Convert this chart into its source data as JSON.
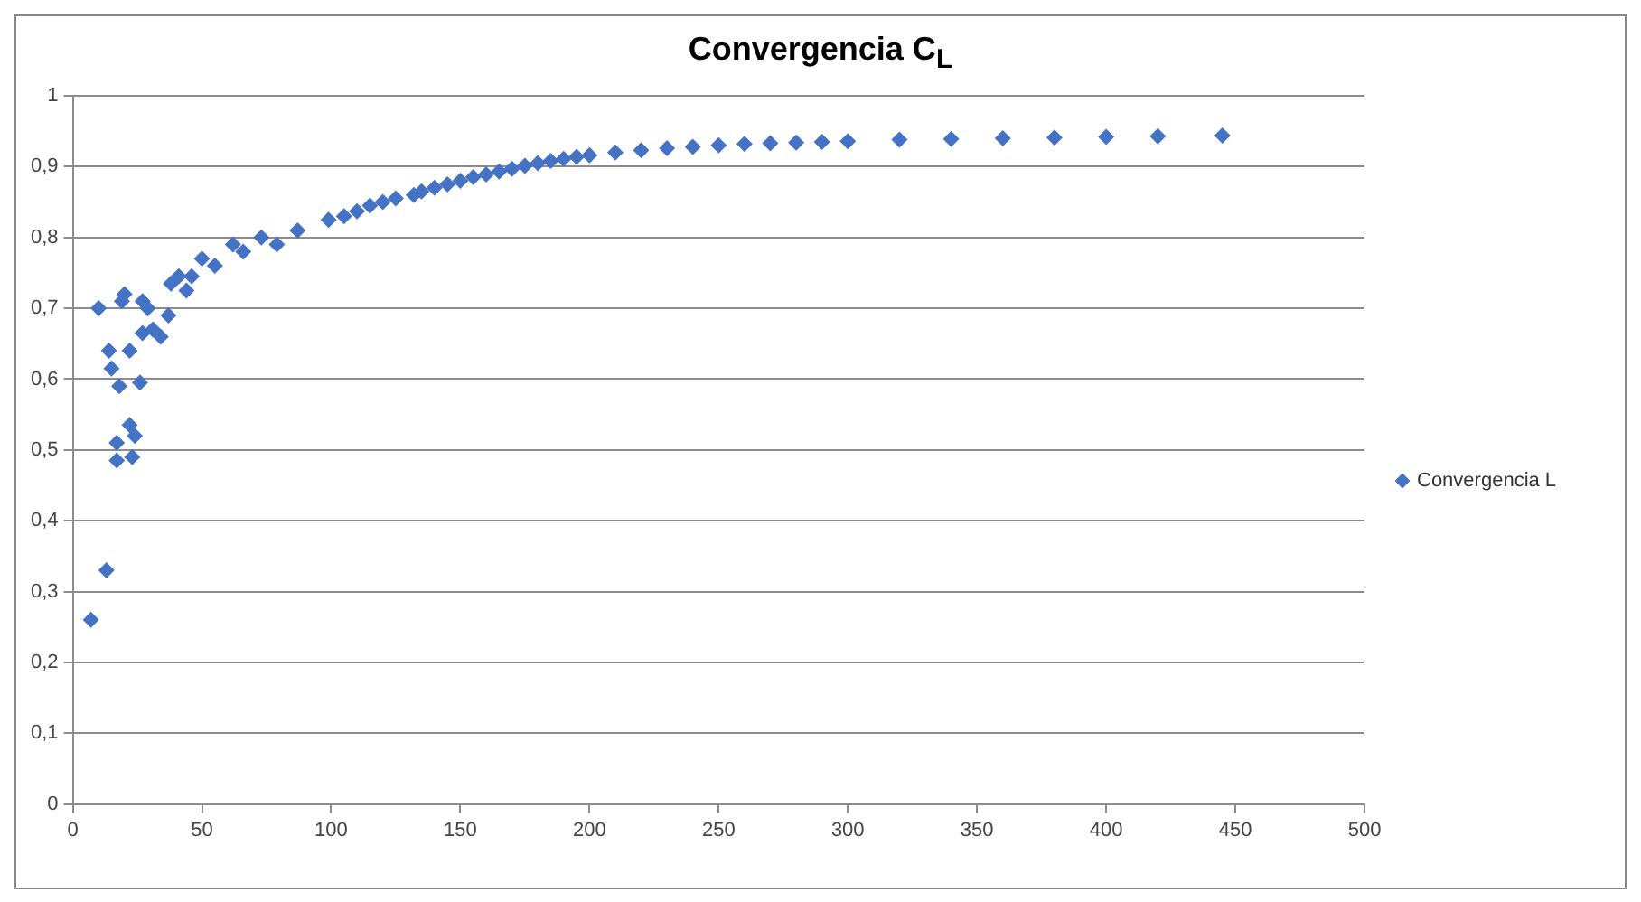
{
  "chart_data": {
    "type": "scatter",
    "title": "Convergencia C$_{L}$",
    "x": [
      7,
      10,
      13,
      14,
      15,
      17,
      17,
      18,
      19,
      20,
      22,
      22,
      23,
      24,
      26,
      27,
      27,
      29,
      31,
      34,
      37,
      38,
      41,
      44,
      46,
      50,
      55,
      62,
      66,
      73,
      79,
      87,
      99,
      105,
      110,
      115,
      120,
      125,
      132,
      135,
      140,
      145,
      150,
      155,
      160,
      165,
      170,
      175,
      180,
      185,
      190,
      195,
      200,
      210,
      220,
      230,
      240,
      250,
      260,
      270,
      280,
      290,
      300,
      320,
      340,
      360,
      380,
      400,
      420,
      445
    ],
    "series": [
      {
        "name": "Convergencia L",
        "color": "#4472c4",
        "values": [
          0.26,
          0.7,
          0.33,
          0.64,
          0.615,
          0.51,
          0.485,
          0.59,
          0.71,
          0.72,
          0.64,
          0.535,
          0.49,
          0.52,
          0.595,
          0.71,
          0.665,
          0.7,
          0.67,
          0.66,
          0.69,
          0.735,
          0.745,
          0.725,
          0.745,
          0.77,
          0.76,
          0.79,
          0.78,
          0.8,
          0.79,
          0.81,
          0.825,
          0.83,
          0.837,
          0.845,
          0.85,
          0.855,
          0.86,
          0.865,
          0.87,
          0.875,
          0.88,
          0.885,
          0.889,
          0.893,
          0.897,
          0.901,
          0.905,
          0.908,
          0.911,
          0.914,
          0.916,
          0.92,
          0.923,
          0.926,
          0.928,
          0.93,
          0.932,
          0.933,
          0.934,
          0.935,
          0.936,
          0.938,
          0.939,
          0.94,
          0.941,
          0.942,
          0.943,
          0.944
        ]
      }
    ],
    "xlim": [
      0,
      500
    ],
    "xticks": [
      0,
      50,
      100,
      150,
      200,
      250,
      300,
      350,
      400,
      450,
      500
    ],
    "ylim": [
      0,
      1
    ],
    "yticks": [
      0,
      {
        "value": 0.1,
        "label": "0,1"
      },
      {
        "value": 0.2,
        "label": "0,2"
      },
      {
        "value": 0.3,
        "label": "0,3"
      },
      {
        "value": 0.4,
        "label": "0,4"
      },
      {
        "value": 0.5,
        "label": "0,5"
      },
      {
        "value": 0.6,
        "label": "0,6"
      },
      {
        "value": 0.7,
        "label": "0,7"
      },
      {
        "value": 0.8,
        "label": "0,8"
      },
      {
        "value": 0.9,
        "label": "0,9"
      },
      1
    ],
    "grid": "y",
    "legend": "right",
    "marker": "diamond"
  }
}
